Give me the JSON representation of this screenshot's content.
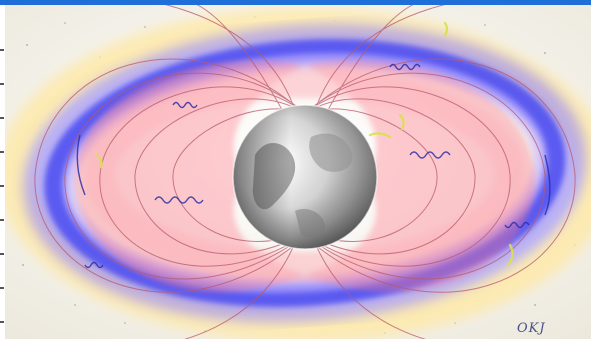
{
  "image": {
    "subject": "radiation-belts-around-earth",
    "colors": {
      "outer_belt_blue": "#3a3cf0",
      "outer_belt_violet": "#8a7cff",
      "inner_belt_pink": "#ff7a8a",
      "field_lines": "#b9586a",
      "particle_trails": "#2c2fa8",
      "highlights": "#d8e24a",
      "halo": "#ffe9a6",
      "background": "#f3f1ea"
    }
  },
  "signature": {
    "text": "OKJ"
  }
}
